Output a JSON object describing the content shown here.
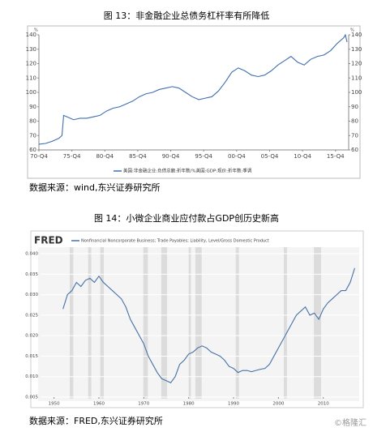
{
  "chart_data": [
    {
      "type": "line",
      "title": "图 13：非金融企业总债务杠杆率有所降低",
      "y_unit": "%",
      "y2_unit": "%",
      "xlim": [
        1970.75,
        2017.75
      ],
      "xticks": [
        {
          "value": 1970.75,
          "label": "70-Q4"
        },
        {
          "value": 1975.75,
          "label": "75-Q4"
        },
        {
          "value": 1980.75,
          "label": "80-Q4"
        },
        {
          "value": 1985.75,
          "label": "85-Q4"
        },
        {
          "value": 1990.75,
          "label": "90-Q4"
        },
        {
          "value": 1995.75,
          "label": "95-Q4"
        },
        {
          "value": 2000.75,
          "label": "00-Q4"
        },
        {
          "value": 2005.75,
          "label": "05-Q4"
        },
        {
          "value": 2010.75,
          "label": "10-Q4"
        },
        {
          "value": 2015.75,
          "label": "15-Q4"
        }
      ],
      "ylim": [
        60,
        140
      ],
      "yticks": [
        60,
        70,
        80,
        90,
        100,
        110,
        120,
        130,
        140
      ],
      "y2lim": [
        60,
        140
      ],
      "y2ticks": [
        60,
        70,
        80,
        90,
        100,
        110,
        120,
        130,
        140
      ],
      "grid": false,
      "series": [
        {
          "name": "美国:非金融企业:负债总额:折年数/%美国:GDP:现价:折年数:季调",
          "color": "#3f6fb0",
          "x": [
            1970.75,
            1971.75,
            1972.75,
            1973.75,
            1974.25,
            1974.5,
            1975,
            1976,
            1977,
            1978,
            1979,
            1980,
            1981,
            1982,
            1983,
            1984,
            1985,
            1986,
            1987,
            1988,
            1989,
            1990,
            1991,
            1992,
            1993,
            1994,
            1995,
            1996,
            1997,
            1998,
            1999,
            2000,
            2001,
            2002,
            2003,
            2004,
            2005,
            2006,
            2007,
            2008,
            2009,
            2010,
            2011,
            2012,
            2013,
            2014,
            2015,
            2016,
            2017,
            2017.25,
            2017.5
          ],
          "values": [
            64,
            64.5,
            66,
            68,
            70,
            84,
            83,
            81,
            82,
            82,
            83,
            84,
            87,
            89,
            90,
            92,
            94,
            97,
            99,
            100,
            102,
            103,
            104,
            103,
            100,
            97,
            95,
            96,
            97,
            101,
            107,
            114,
            117,
            115,
            112,
            111,
            112,
            115,
            119,
            122,
            125,
            121,
            119,
            123,
            125,
            126,
            129,
            134,
            138,
            140,
            135
          ]
        }
      ]
    },
    {
      "type": "line",
      "title": "图 14：小微企业商业应付款占GDP创历史新高",
      "logo": "FRED",
      "xlim": [
        1947,
        2018
      ],
      "xticks": [
        1950,
        1960,
        1970,
        1980,
        1990,
        2000,
        2010
      ],
      "ylim": [
        0.005,
        0.041
      ],
      "yticks": [
        {
          "value": 0.005,
          "label": "0.005"
        },
        {
          "value": 0.01,
          "label": "0.010"
        },
        {
          "value": 0.015,
          "label": "0.015"
        },
        {
          "value": 0.02,
          "label": "0.020"
        },
        {
          "value": 0.025,
          "label": "0.025"
        },
        {
          "value": 0.03,
          "label": "0.030"
        },
        {
          "value": 0.035,
          "label": "0.035"
        },
        {
          "value": 0.04,
          "label": "0.040"
        }
      ],
      "grid": true,
      "recession_color": "#dcdcdc",
      "recessions": [
        [
          1953.5,
          1954.3
        ],
        [
          1957.6,
          1958.3
        ],
        [
          1960.3,
          1961.1
        ],
        [
          1969.9,
          1970.9
        ],
        [
          1973.9,
          1975.2
        ],
        [
          1980,
          1980.5
        ],
        [
          1981.5,
          1982.9
        ],
        [
          1990.5,
          1991.2
        ],
        [
          2001.2,
          2001.9
        ],
        [
          2007.9,
          2009.5
        ]
      ],
      "series": [
        {
          "name": "Nonfinancial Noncorporate Business; Trade Payables; Liability, Level/Gross Domestic Product",
          "color": "#4572a7",
          "x": [
            1952,
            1953,
            1954,
            1955,
            1956,
            1957,
            1958,
            1959,
            1960,
            1961,
            1962,
            1963,
            1964,
            1965,
            1966,
            1967,
            1968,
            1969,
            1970,
            1971,
            1972,
            1973,
            1974,
            1975,
            1976,
            1977,
            1978,
            1979,
            1980,
            1981,
            1982,
            1983,
            1984,
            1985,
            1986,
            1987,
            1988,
            1989,
            1990,
            1991,
            1992,
            1993,
            1994,
            1995,
            1996,
            1997,
            1998,
            1999,
            2000,
            2001,
            2002,
            2003,
            2004,
            2005,
            2006,
            2007,
            2008,
            2009,
            2010,
            2011,
            2012,
            2013,
            2014,
            2015,
            2016,
            2017
          ],
          "values": [
            0.0265,
            0.03,
            0.031,
            0.033,
            0.032,
            0.0335,
            0.034,
            0.033,
            0.0345,
            0.033,
            0.032,
            0.031,
            0.03,
            0.029,
            0.027,
            0.024,
            0.022,
            0.02,
            0.018,
            0.015,
            0.013,
            0.011,
            0.0095,
            0.009,
            0.0085,
            0.01,
            0.013,
            0.014,
            0.0155,
            0.016,
            0.017,
            0.0175,
            0.017,
            0.016,
            0.0155,
            0.015,
            0.014,
            0.0125,
            0.012,
            0.011,
            0.0115,
            0.0115,
            0.0112,
            0.0115,
            0.0118,
            0.012,
            0.013,
            0.015,
            0.017,
            0.019,
            0.021,
            0.023,
            0.025,
            0.026,
            0.027,
            0.025,
            0.0255,
            0.024,
            0.0265,
            0.028,
            0.029,
            0.03,
            0.031,
            0.031,
            0.033,
            0.0365
          ]
        }
      ]
    }
  ],
  "sources": [
    "数据来源：wind,东兴证券研究所",
    "数据来源：FRED,东兴证券研究所"
  ],
  "watermark": "©格隆汇"
}
